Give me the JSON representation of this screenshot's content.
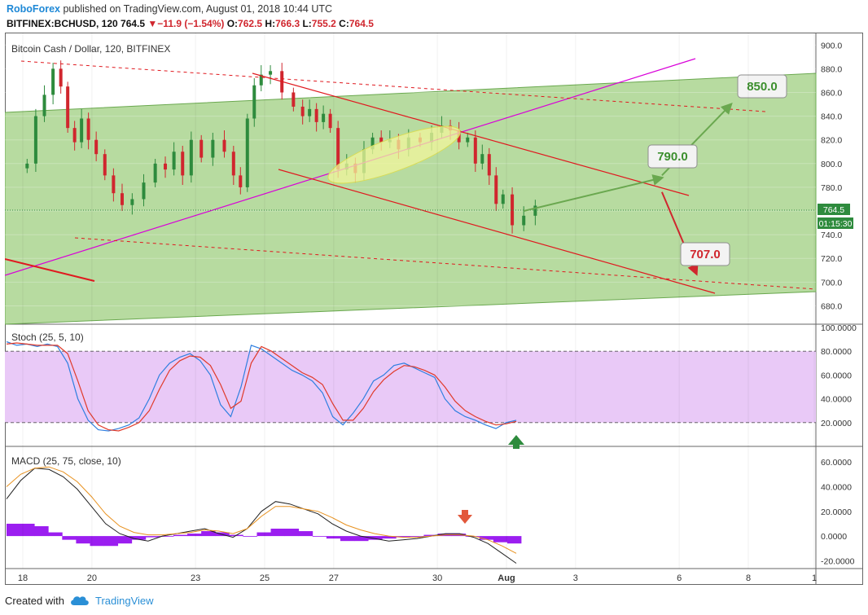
{
  "header": {
    "brand": "RoboForex",
    "published": "published on TradingView.com, August 01, 2018 10:44 UTC",
    "symbol": "BITFINEX:BCHUSD, 120",
    "last": "764.5",
    "change_arrow": "▼",
    "change": "−11.9 (−1.54%)",
    "o_label": "O:",
    "o_value": "762.5",
    "h_label": "H:",
    "h_value": "766.3",
    "l_label": "L:",
    "l_value": "755.2",
    "c_label": "C:",
    "c_value": "764.5"
  },
  "footer": {
    "created_with": "Created with",
    "tradingview": "TradingView"
  },
  "colors": {
    "up": "#2e8b3d",
    "down": "#d0262e",
    "channel_fill": "#b7dba0",
    "stoch_band": "#e9c9f7",
    "macd_hist": "#9b1ef0",
    "stoch_k": "#2f7fe0",
    "stoch_d": "#e03a2a",
    "trendline": "#d900d9"
  },
  "chart_data": [
    {
      "type": "candlestick",
      "title": "Bitcoin Cash / Dollar, 120, BITFINEX",
      "ylim": [
        670,
        905
      ],
      "y_ticks": [
        "900.0",
        "880.0",
        "860.0",
        "840.0",
        "820.0",
        "800.0",
        "780.0",
        "760.0",
        "740.0",
        "720.0",
        "700.0",
        "680.0"
      ],
      "last_price_label": "764.5",
      "countdown_label": "01:15:30",
      "annotations": [
        {
          "text": "850.0",
          "color": "#3c8f2e",
          "kind": "target"
        },
        {
          "text": "790.0",
          "color": "#3c8f2e",
          "kind": "target"
        },
        {
          "text": "707.0",
          "color": "#d0262e",
          "kind": "target"
        }
      ],
      "close_path": [
        [
          "2018-07-18",
          800
        ],
        [
          "2018-07-18",
          840
        ],
        [
          "2018-07-18",
          858
        ],
        [
          "2018-07-18",
          880
        ],
        [
          "2018-07-19",
          865
        ],
        [
          "2018-07-19",
          830
        ],
        [
          "2018-07-19",
          818
        ],
        [
          "2018-07-19",
          838
        ],
        [
          "2018-07-19",
          820
        ],
        [
          "2018-07-20",
          808
        ],
        [
          "2018-07-20",
          790
        ],
        [
          "2018-07-20",
          775
        ],
        [
          "2018-07-20",
          765
        ],
        [
          "2018-07-21",
          770
        ],
        [
          "2018-07-21",
          784
        ],
        [
          "2018-07-21",
          800
        ],
        [
          "2018-07-22",
          795
        ],
        [
          "2018-07-22",
          810
        ],
        [
          "2018-07-22",
          790
        ],
        [
          "2018-07-22",
          820
        ],
        [
          "2018-07-23",
          805
        ],
        [
          "2018-07-23",
          820
        ],
        [
          "2018-07-23",
          810
        ],
        [
          "2018-07-24",
          790
        ],
        [
          "2018-07-24",
          780
        ],
        [
          "2018-07-24",
          838
        ],
        [
          "2018-07-24",
          866
        ],
        [
          "2018-07-24",
          875
        ],
        [
          "2018-07-25",
          878
        ],
        [
          "2018-07-25",
          860
        ],
        [
          "2018-07-25",
          848
        ],
        [
          "2018-07-26",
          840
        ],
        [
          "2018-07-26",
          846
        ],
        [
          "2018-07-26",
          835
        ],
        [
          "2018-07-26",
          842
        ],
        [
          "2018-07-26",
          830
        ],
        [
          "2018-07-27",
          795
        ],
        [
          "2018-07-27",
          800
        ],
        [
          "2018-07-27",
          792
        ],
        [
          "2018-07-27",
          812
        ],
        [
          "2018-07-28",
          822
        ],
        [
          "2018-07-28",
          818
        ],
        [
          "2018-07-28",
          820
        ],
        [
          "2018-07-28",
          812
        ],
        [
          "2018-07-29",
          822
        ],
        [
          "2018-07-29",
          818
        ],
        [
          "2018-07-29",
          826
        ],
        [
          "2018-07-30",
          832
        ],
        [
          "2018-07-30",
          828
        ],
        [
          "2018-07-30",
          818
        ],
        [
          "2018-07-30",
          822
        ],
        [
          "2018-07-31",
          800
        ],
        [
          "2018-07-31",
          808
        ],
        [
          "2018-07-31",
          790
        ],
        [
          "2018-07-31",
          766
        ],
        [
          "2018-07-31",
          774
        ],
        [
          "2018-08-01",
          748
        ],
        [
          "2018-08-01",
          756
        ],
        [
          "2018-08-01",
          764.5
        ]
      ],
      "forecast_paths": [
        {
          "color": "#6aa84f",
          "points": [
            [
              "2018-08-01",
              760
            ],
            [
              "2018-08-05",
              788
            ]
          ]
        },
        {
          "color": "#6aa84f",
          "points": [
            [
              "2018-08-05",
              790
            ],
            [
              "2018-08-07",
              850
            ]
          ]
        },
        {
          "color": "#d0262e",
          "points": [
            [
              "2018-08-05",
              776
            ],
            [
              "2018-08-06",
              707
            ]
          ]
        }
      ]
    },
    {
      "type": "line",
      "title": "Stoch (25, 5, 10)",
      "ylim": [
        0,
        100
      ],
      "y_ticks": [
        "100.0000",
        "80.0000",
        "60.0000",
        "40.0000",
        "20.0000"
      ],
      "band": [
        20,
        80
      ],
      "series": [
        {
          "key": "k",
          "values": [
            88,
            85,
            86,
            84,
            86,
            84,
            70,
            40,
            22,
            14,
            13,
            15,
            18,
            24,
            40,
            60,
            70,
            75,
            78,
            72,
            60,
            35,
            25,
            50,
            85,
            82,
            76,
            70,
            64,
            60,
            55,
            45,
            25,
            18,
            28,
            40,
            55,
            60,
            68,
            70,
            66,
            62,
            58,
            40,
            30,
            25,
            22,
            18,
            15,
            20,
            22
          ]
        },
        {
          "key": "d",
          "values": [
            86,
            87,
            86,
            85,
            85,
            85,
            78,
            55,
            30,
            18,
            14,
            13,
            16,
            20,
            30,
            48,
            64,
            72,
            76,
            75,
            68,
            52,
            32,
            38,
            70,
            84,
            80,
            74,
            68,
            62,
            58,
            52,
            36,
            22,
            22,
            32,
            46,
            56,
            63,
            68,
            67,
            64,
            60,
            50,
            38,
            30,
            25,
            21,
            18,
            19,
            21
          ]
        }
      ]
    },
    {
      "type": "line",
      "title": "MACD (25, 75, close, 10)",
      "ylim": [
        -25,
        70
      ],
      "y_ticks": [
        "60.0000",
        "40.0000",
        "20.0000",
        "0.0000",
        "-20.0000"
      ],
      "series": [
        {
          "key": "macd",
          "values": [
            30,
            45,
            55,
            54,
            48,
            38,
            24,
            10,
            2,
            -2,
            -4,
            0,
            2,
            4,
            6,
            2,
            -1,
            6,
            20,
            28,
            26,
            22,
            18,
            10,
            4,
            0,
            -2,
            -4,
            -3,
            -2,
            0,
            2,
            2,
            -1,
            -6,
            -14,
            -22
          ]
        },
        {
          "key": "signal",
          "values": [
            40,
            50,
            55,
            56,
            52,
            44,
            32,
            18,
            8,
            3,
            1,
            1,
            2,
            3,
            5,
            4,
            2,
            6,
            16,
            24,
            24,
            22,
            20,
            15,
            9,
            5,
            2,
            0,
            -1,
            -1,
            0,
            1,
            1,
            0,
            -3,
            -8,
            -14
          ]
        }
      ],
      "histogram": [
        10,
        10,
        8,
        3,
        -3,
        -6,
        -8,
        -8,
        -6,
        -3,
        -1,
        0,
        1,
        2,
        4,
        3,
        1,
        0,
        3,
        6,
        6,
        4,
        0,
        -2,
        -4,
        -4,
        -3,
        -2,
        -1,
        0,
        1,
        2,
        2,
        0,
        -3,
        -5,
        -6
      ]
    }
  ],
  "x_ticks": [
    "18",
    "20",
    "23",
    "25",
    "27",
    "30",
    "Aug",
    "3",
    "6",
    "8",
    "1"
  ]
}
